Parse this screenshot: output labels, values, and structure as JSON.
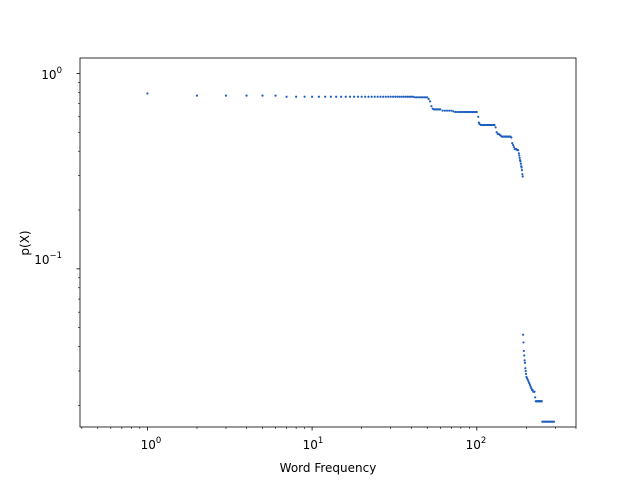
{
  "chart_data": {
    "type": "scatter",
    "title": "",
    "xlabel": "Word Frequency",
    "ylabel": "p(X)",
    "xscale": "log",
    "yscale": "log",
    "xlim": [
      0.39,
      400
    ],
    "ylim": [
      0.0155,
      1.2
    ],
    "grid": false,
    "legend": "none",
    "marker_color": "#1f5fbf",
    "x_major_ticks": [
      1,
      10,
      100
    ],
    "x_tick_labels": [
      "10",
      "10",
      "10"
    ],
    "x_tick_exponents": [
      "0",
      "1",
      "2"
    ],
    "y_major_ticks": [
      1,
      0.1
    ],
    "y_tick_labels": [
      "10",
      "10"
    ],
    "y_tick_exponents": [
      "0",
      "−1"
    ],
    "series": [
      {
        "points": [
          [
            1,
            0.79
          ],
          [
            2,
            0.77
          ],
          [
            3,
            0.77
          ],
          [
            4,
            0.77
          ],
          [
            5,
            0.77
          ],
          [
            6,
            0.77
          ],
          [
            7,
            0.76
          ],
          [
            8,
            0.76
          ],
          [
            9,
            0.76
          ],
          [
            10,
            0.76
          ],
          [
            11,
            0.76
          ],
          [
            12,
            0.76
          ],
          [
            13,
            0.76
          ],
          [
            14,
            0.76
          ],
          [
            15,
            0.76
          ],
          [
            16,
            0.76
          ],
          [
            17,
            0.76
          ],
          [
            18,
            0.76
          ],
          [
            19,
            0.76
          ],
          [
            20,
            0.76
          ],
          [
            21,
            0.76
          ],
          [
            22,
            0.76
          ],
          [
            23,
            0.76
          ],
          [
            24,
            0.76
          ],
          [
            25,
            0.76
          ],
          [
            26,
            0.76
          ],
          [
            27,
            0.76
          ],
          [
            28,
            0.76
          ],
          [
            29,
            0.76
          ],
          [
            30,
            0.76
          ],
          [
            31,
            0.76
          ],
          [
            32,
            0.76
          ],
          [
            33,
            0.76
          ],
          [
            34,
            0.76
          ],
          [
            35,
            0.76
          ],
          [
            36,
            0.76
          ],
          [
            37,
            0.76
          ],
          [
            38,
            0.76
          ],
          [
            39,
            0.76
          ],
          [
            40,
            0.76
          ],
          [
            41,
            0.76
          ],
          [
            42,
            0.755
          ],
          [
            43,
            0.755
          ],
          [
            44,
            0.755
          ],
          [
            45,
            0.755
          ],
          [
            46,
            0.755
          ],
          [
            47,
            0.755
          ],
          [
            48,
            0.755
          ],
          [
            49,
            0.755
          ],
          [
            50,
            0.755
          ],
          [
            51,
            0.74
          ],
          [
            52,
            0.72
          ],
          [
            53,
            0.68
          ],
          [
            54,
            0.66
          ],
          [
            55,
            0.655
          ],
          [
            56,
            0.655
          ],
          [
            57,
            0.655
          ],
          [
            58,
            0.655
          ],
          [
            59,
            0.655
          ],
          [
            60,
            0.655
          ],
          [
            62,
            0.645
          ],
          [
            64,
            0.645
          ],
          [
            66,
            0.645
          ],
          [
            68,
            0.645
          ],
          [
            70,
            0.645
          ],
          [
            72,
            0.64
          ],
          [
            74,
            0.635
          ],
          [
            76,
            0.635
          ],
          [
            78,
            0.635
          ],
          [
            80,
            0.635
          ],
          [
            82,
            0.635
          ],
          [
            84,
            0.635
          ],
          [
            86,
            0.635
          ],
          [
            88,
            0.635
          ],
          [
            90,
            0.635
          ],
          [
            92,
            0.635
          ],
          [
            94,
            0.635
          ],
          [
            96,
            0.635
          ],
          [
            98,
            0.635
          ],
          [
            100,
            0.635
          ],
          [
            102,
            0.6
          ],
          [
            103,
            0.56
          ],
          [
            104,
            0.55
          ],
          [
            106,
            0.545
          ],
          [
            108,
            0.545
          ],
          [
            110,
            0.545
          ],
          [
            112,
            0.545
          ],
          [
            114,
            0.545
          ],
          [
            116,
            0.545
          ],
          [
            118,
            0.545
          ],
          [
            120,
            0.545
          ],
          [
            122,
            0.545
          ],
          [
            124,
            0.545
          ],
          [
            126,
            0.545
          ],
          [
            128,
            0.545
          ],
          [
            130,
            0.53
          ],
          [
            132,
            0.5
          ],
          [
            134,
            0.49
          ],
          [
            136,
            0.49
          ],
          [
            138,
            0.485
          ],
          [
            140,
            0.48
          ],
          [
            142,
            0.475
          ],
          [
            144,
            0.475
          ],
          [
            146,
            0.475
          ],
          [
            148,
            0.475
          ],
          [
            150,
            0.475
          ],
          [
            152,
            0.475
          ],
          [
            154,
            0.475
          ],
          [
            156,
            0.475
          ],
          [
            158,
            0.475
          ],
          [
            160,
            0.475
          ],
          [
            162,
            0.47
          ],
          [
            164,
            0.44
          ],
          [
            166,
            0.43
          ],
          [
            168,
            0.42
          ],
          [
            170,
            0.41
          ],
          [
            172,
            0.41
          ],
          [
            174,
            0.41
          ],
          [
            176,
            0.405
          ],
          [
            178,
            0.405
          ],
          [
            180,
            0.39
          ],
          [
            181,
            0.38
          ],
          [
            182,
            0.37
          ],
          [
            183,
            0.36
          ],
          [
            184,
            0.355
          ],
          [
            185,
            0.345
          ],
          [
            186,
            0.335
          ],
          [
            187,
            0.33
          ],
          [
            188,
            0.32
          ],
          [
            189,
            0.305
          ],
          [
            190,
            0.297
          ],
          [
            191,
            0.046
          ],
          [
            192,
            0.042
          ],
          [
            193,
            0.038
          ],
          [
            194,
            0.036
          ],
          [
            195,
            0.034
          ],
          [
            196,
            0.033
          ],
          [
            197,
            0.031
          ],
          [
            198,
            0.03
          ],
          [
            199,
            0.029
          ],
          [
            200,
            0.028
          ],
          [
            202,
            0.0275
          ],
          [
            204,
            0.027
          ],
          [
            206,
            0.0265
          ],
          [
            208,
            0.026
          ],
          [
            210,
            0.0255
          ],
          [
            212,
            0.025
          ],
          [
            214,
            0.0245
          ],
          [
            216,
            0.024
          ],
          [
            218,
            0.024
          ],
          [
            220,
            0.0235
          ],
          [
            222,
            0.0235
          ],
          [
            224,
            0.0235
          ],
          [
            226,
            0.022
          ],
          [
            228,
            0.021
          ],
          [
            230,
            0.021
          ],
          [
            232,
            0.021
          ],
          [
            234,
            0.021
          ],
          [
            236,
            0.021
          ],
          [
            238,
            0.021
          ],
          [
            240,
            0.021
          ],
          [
            242,
            0.021
          ],
          [
            244,
            0.021
          ],
          [
            246,
            0.021
          ],
          [
            248,
            0.021
          ],
          [
            250,
            0.0165
          ],
          [
            254,
            0.0165
          ],
          [
            258,
            0.0165
          ],
          [
            262,
            0.0165
          ],
          [
            266,
            0.0165
          ],
          [
            270,
            0.0165
          ],
          [
            274,
            0.0165
          ],
          [
            278,
            0.0165
          ],
          [
            282,
            0.0165
          ],
          [
            286,
            0.0165
          ],
          [
            290,
            0.0165
          ],
          [
            294,
            0.0165
          ]
        ]
      }
    ]
  }
}
